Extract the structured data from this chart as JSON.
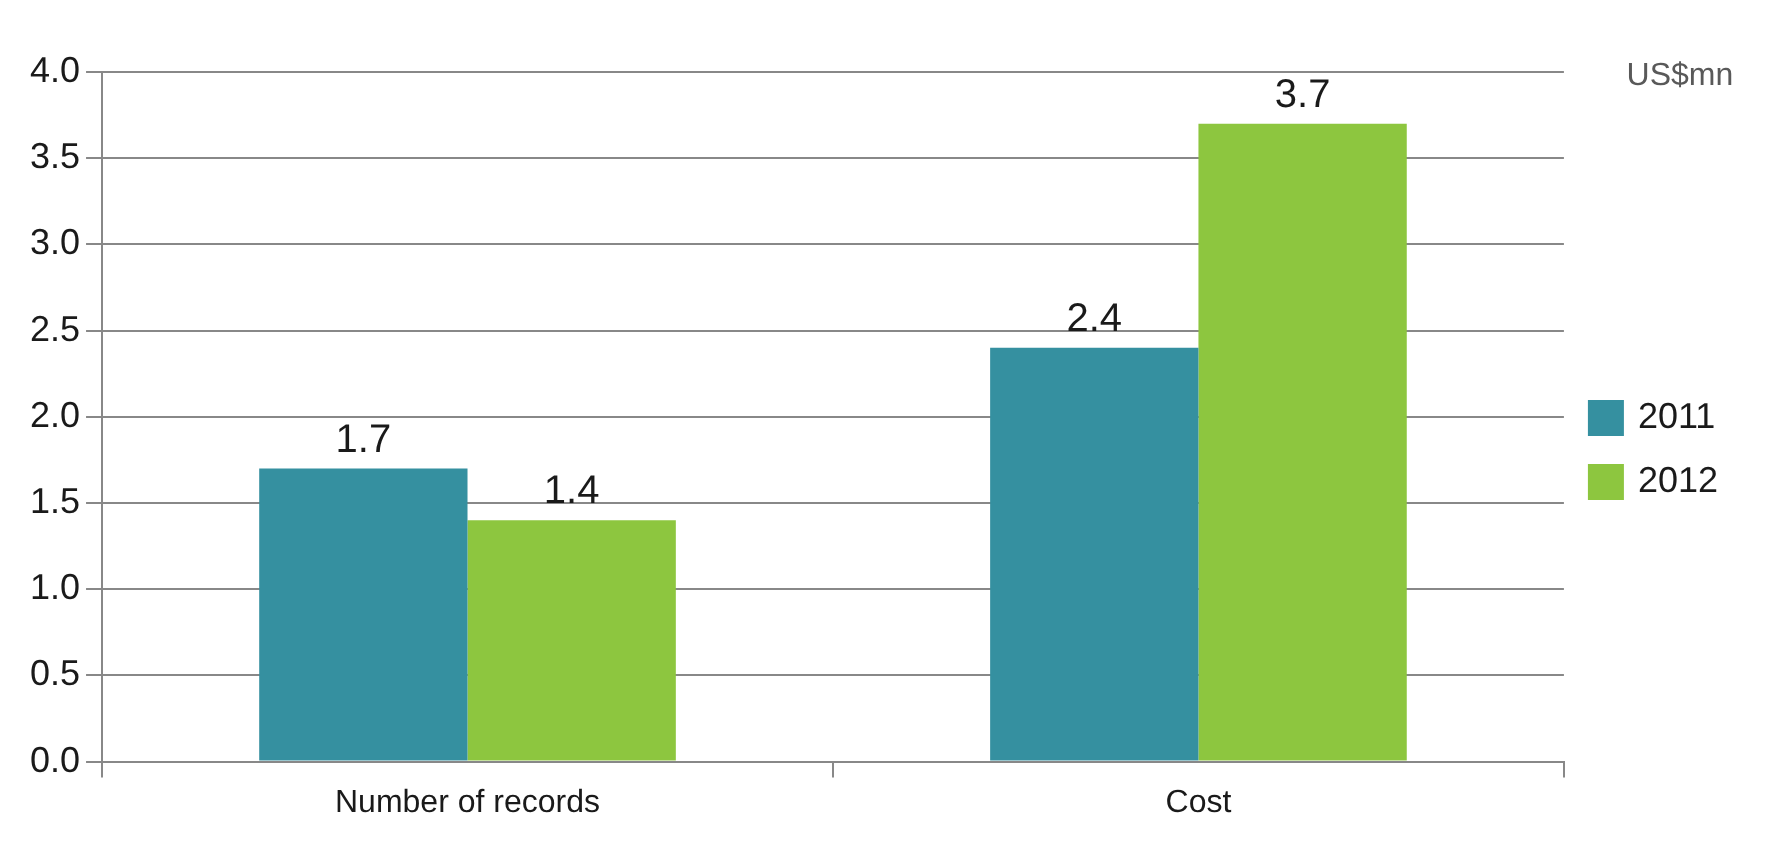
{
  "chart_data": {
    "type": "bar",
    "ylabel": "US$mn",
    "categories": [
      "Number of records",
      "Cost"
    ],
    "series": [
      {
        "name": "2011",
        "color": "#3590a0",
        "values": [
          1.7,
          2.4
        ]
      },
      {
        "name": "2012",
        "color": "#8dc63f",
        "values": [
          1.4,
          3.7
        ]
      }
    ],
    "ylim": [
      0,
      4
    ],
    "yticks": [
      {
        "value": 0,
        "label": "0.0"
      },
      0.5,
      {
        "value": 1,
        "label": "1.0"
      },
      1.5,
      {
        "value": 2,
        "label": "2.0"
      },
      2.5,
      {
        "value": 3,
        "label": "3.0"
      },
      3.5,
      {
        "value": 4,
        "label": "4.0"
      }
    ],
    "grid": "y",
    "legend": "right",
    "data_labels": true
  }
}
